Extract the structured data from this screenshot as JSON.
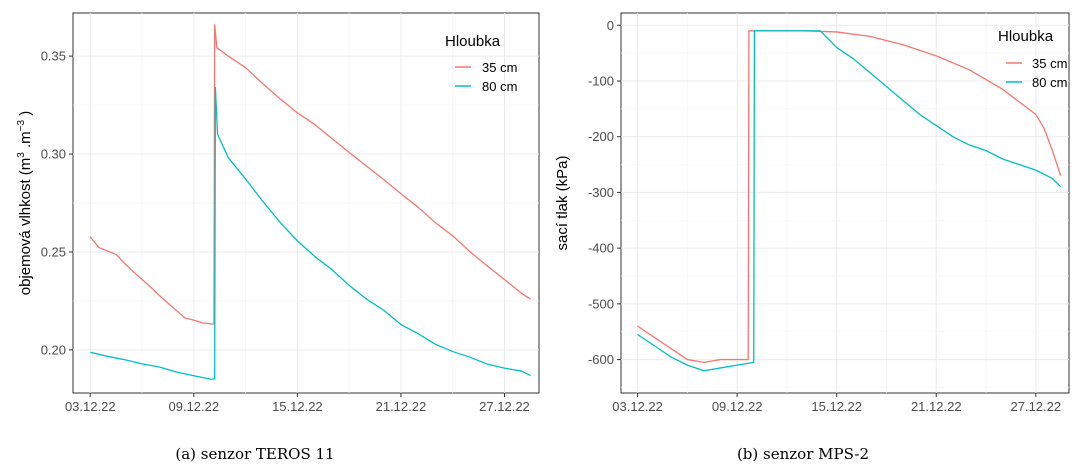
{
  "chart_data": [
    {
      "type": "line",
      "caption": "(a) senzor TEROS 11",
      "ylabel_main": "objemová vlhkost (m",
      "ylabel_sup1": "3",
      "ylabel_mid": " .m",
      "ylabel_sup2": "−3",
      "ylabel_end": " )",
      "xlabel": "",
      "x_ticks": [
        "03.12.22",
        "09.12.22",
        "15.12.22",
        "21.12.22",
        "27.12.22"
      ],
      "y_ticks": [
        0.2,
        0.25,
        0.3,
        0.35
      ],
      "ylim": [
        0.178,
        0.372
      ],
      "xlim": [
        "02.12.22",
        "29.12.22"
      ],
      "grid": true,
      "legend": {
        "title": "Hloubka",
        "position": "top-right"
      },
      "series": [
        {
          "name": "35 cm",
          "color": "#f8766d",
          "points": [
            [
              "03.12.22 00:00",
              0.258
            ],
            [
              "03.12.22 12:00",
              0.252
            ],
            [
              "04.12.22 12:00",
              0.249
            ],
            [
              "05.12.22 00:00",
              0.244
            ],
            [
              "05.12.22 12:00",
              0.24
            ],
            [
              "06.12.22 00:00",
              0.236
            ],
            [
              "06.12.22 12:00",
              0.232
            ],
            [
              "07.12.22 00:00",
              0.228
            ],
            [
              "07.12.22 12:00",
              0.224
            ],
            [
              "08.12.22 00:00",
              0.22
            ],
            [
              "08.12.22 12:00",
              0.216
            ],
            [
              "09.12.22 00:00",
              0.215
            ],
            [
              "09.12.22 12:00",
              0.214
            ],
            [
              "10.12.22 00:00",
              0.213
            ],
            [
              "10.12.22 04:00",
              0.213
            ],
            [
              "10.12.22 05:00",
              0.366
            ],
            [
              "10.12.22 08:00",
              0.354
            ],
            [
              "11.12.22 00:00",
              0.35
            ],
            [
              "12.12.22 00:00",
              0.344
            ],
            [
              "13.12.22 00:00",
              0.336
            ],
            [
              "14.12.22 00:00",
              0.328
            ],
            [
              "15.12.22 00:00",
              0.321
            ],
            [
              "16.12.22 00:00",
              0.315
            ],
            [
              "17.12.22 00:00",
              0.308
            ],
            [
              "18.12.22 00:00",
              0.301
            ],
            [
              "19.12.22 00:00",
              0.294
            ],
            [
              "20.12.22 00:00",
              0.287
            ],
            [
              "21.12.22 00:00",
              0.28
            ],
            [
              "22.12.22 00:00",
              0.273
            ],
            [
              "23.12.22 00:00",
              0.265
            ],
            [
              "24.12.22 00:00",
              0.258
            ],
            [
              "25.12.22 00:00",
              0.25
            ],
            [
              "26.12.22 00:00",
              0.243
            ],
            [
              "27.12.22 00:00",
              0.236
            ],
            [
              "28.12.22 00:00",
              0.229
            ],
            [
              "28.12.22 12:00",
              0.226
            ]
          ]
        },
        {
          "name": "80 cm",
          "color": "#00bfc4",
          "points": [
            [
              "03.12.22 00:00",
              0.199
            ],
            [
              "04.12.22 00:00",
              0.197
            ],
            [
              "05.12.22 00:00",
              0.195
            ],
            [
              "06.12.22 00:00",
              0.193
            ],
            [
              "07.12.22 00:00",
              0.191
            ],
            [
              "08.12.22 00:00",
              0.189
            ],
            [
              "09.12.22 00:00",
              0.187
            ],
            [
              "10.12.22 00:00",
              0.185
            ],
            [
              "10.12.22 05:00",
              0.185
            ],
            [
              "10.12.22 06:00",
              0.334
            ],
            [
              "10.12.22 09:00",
              0.31
            ],
            [
              "11.12.22 00:00",
              0.298
            ],
            [
              "12.12.22 00:00",
              0.287
            ],
            [
              "13.12.22 00:00",
              0.276
            ],
            [
              "14.12.22 00:00",
              0.265
            ],
            [
              "15.12.22 00:00",
              0.256
            ],
            [
              "16.12.22 00:00",
              0.248
            ],
            [
              "17.12.22 00:00",
              0.241
            ],
            [
              "18.12.22 00:00",
              0.233
            ],
            [
              "19.12.22 00:00",
              0.226
            ],
            [
              "20.12.22 00:00",
              0.22
            ],
            [
              "21.12.22 00:00",
              0.213
            ],
            [
              "22.12.22 00:00",
              0.208
            ],
            [
              "23.12.22 00:00",
              0.203
            ],
            [
              "24.12.22 00:00",
              0.199
            ],
            [
              "25.12.22 00:00",
              0.196
            ],
            [
              "26.12.22 00:00",
              0.193
            ],
            [
              "27.12.22 00:00",
              0.191
            ],
            [
              "28.12.22 00:00",
              0.189
            ],
            [
              "28.12.22 12:00",
              0.187
            ]
          ]
        }
      ]
    },
    {
      "type": "line",
      "caption": "(b) senzor MPS-2",
      "ylabel": "sací tlak (kPa)",
      "xlabel": "",
      "x_ticks": [
        "03.12.22",
        "09.12.22",
        "15.12.22",
        "21.12.22",
        "27.12.22"
      ],
      "y_ticks": [
        0,
        -100,
        -200,
        -300,
        -400,
        -500,
        -600
      ],
      "ylim": [
        -660,
        22
      ],
      "xlim": [
        "02.12.22",
        "29.12.22"
      ],
      "grid": true,
      "legend": {
        "title": "Hloubka",
        "position": "top-right"
      },
      "series": [
        {
          "name": "35 cm",
          "color": "#f8766d",
          "points": [
            [
              "03.12.22 00:00",
              -540
            ],
            [
              "04.12.22 00:00",
              -560
            ],
            [
              "05.12.22 00:00",
              -580
            ],
            [
              "06.12.22 00:00",
              -600
            ],
            [
              "07.12.22 00:00",
              -605
            ],
            [
              "08.12.22 00:00",
              -600
            ],
            [
              "09.12.22 00:00",
              -600
            ],
            [
              "09.12.22 16:00",
              -600
            ],
            [
              "09.12.22 17:00",
              -10
            ],
            [
              "13.12.22 00:00",
              -10
            ],
            [
              "15.12.22 00:00",
              -12
            ],
            [
              "17.12.22 00:00",
              -20
            ],
            [
              "19.12.22 00:00",
              -35
            ],
            [
              "21.12.22 00:00",
              -55
            ],
            [
              "23.12.22 00:00",
              -80
            ],
            [
              "25.12.22 00:00",
              -115
            ],
            [
              "27.12.22 00:00",
              -160
            ],
            [
              "27.12.22 12:00",
              -185
            ],
            [
              "28.12.22 00:00",
              -225
            ],
            [
              "28.12.22 12:00",
              -270
            ]
          ]
        },
        {
          "name": "80 cm",
          "color": "#00bfc4",
          "points": [
            [
              "03.12.22 00:00",
              -555
            ],
            [
              "04.12.22 00:00",
              -575
            ],
            [
              "05.12.22 00:00",
              -595
            ],
            [
              "06.12.22 00:00",
              -610
            ],
            [
              "07.12.22 00:00",
              -620
            ],
            [
              "08.12.22 00:00",
              -615
            ],
            [
              "09.12.22 00:00",
              -610
            ],
            [
              "10.12.22 00:00",
              -605
            ],
            [
              "10.12.22 01:00",
              -10
            ],
            [
              "14.12.22 00:00",
              -10
            ],
            [
              "15.12.22 00:00",
              -40
            ],
            [
              "16.12.22 00:00",
              -60
            ],
            [
              "17.12.22 00:00",
              -85
            ],
            [
              "18.12.22 00:00",
              -110
            ],
            [
              "19.12.22 00:00",
              -135
            ],
            [
              "20.12.22 00:00",
              -160
            ],
            [
              "21.12.22 00:00",
              -180
            ],
            [
              "22.12.22 00:00",
              -200
            ],
            [
              "23.12.22 00:00",
              -215
            ],
            [
              "24.12.22 00:00",
              -225
            ],
            [
              "25.12.22 00:00",
              -240
            ],
            [
              "26.12.22 00:00",
              -250
            ],
            [
              "27.12.22 00:00",
              -260
            ],
            [
              "28.12.22 00:00",
              -275
            ],
            [
              "28.12.22 12:00",
              -290
            ]
          ]
        }
      ]
    }
  ]
}
